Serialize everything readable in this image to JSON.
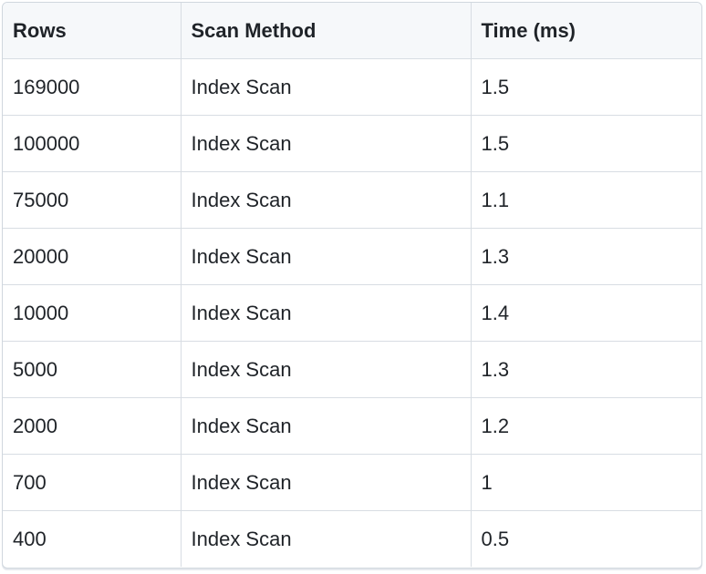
{
  "table": {
    "headers": [
      "Rows",
      "Scan Method",
      "Time (ms)"
    ],
    "rows": [
      [
        "169000",
        "Index Scan",
        "1.5"
      ],
      [
        "100000",
        "Index Scan",
        "1.5"
      ],
      [
        "75000",
        "Index Scan",
        "1.1"
      ],
      [
        "20000",
        "Index Scan",
        "1.3"
      ],
      [
        "10000",
        "Index Scan",
        "1.4"
      ],
      [
        "5000",
        "Index Scan",
        "1.3"
      ],
      [
        "2000",
        "Index Scan",
        "1.2"
      ],
      [
        "700",
        "Index Scan",
        "1"
      ],
      [
        "400",
        "Index Scan",
        "0.5"
      ]
    ]
  },
  "colors": {
    "header_bg": "#f6f8fa",
    "border": "#d8dde3",
    "text": "#1f2328"
  }
}
